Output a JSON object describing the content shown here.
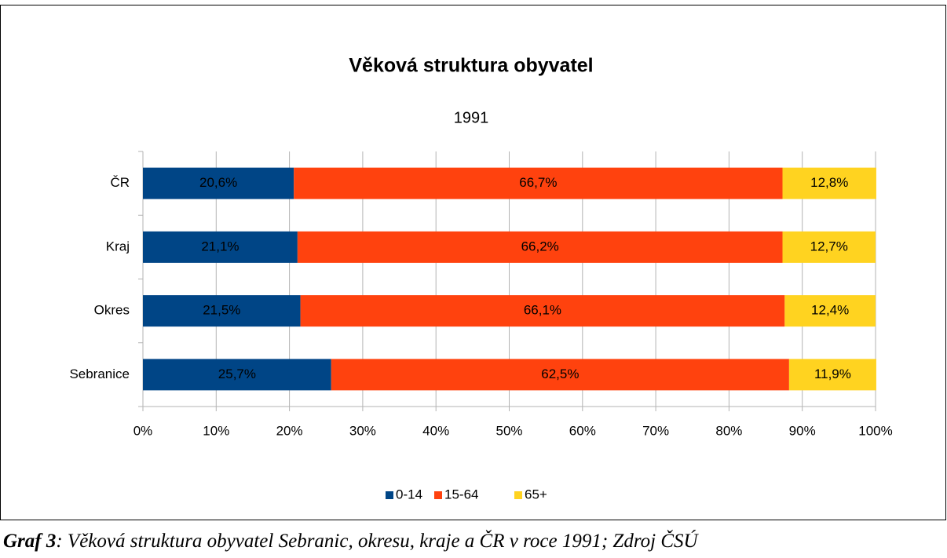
{
  "chart_data": {
    "type": "stacked_barh",
    "title": "Věková struktura obyvatel",
    "subtitle": "1991",
    "categories": [
      "ČR",
      "Kraj",
      "Okres",
      "Sebranice"
    ],
    "series": [
      {
        "name": "0-14",
        "color": "#004586",
        "values": [
          20.6,
          21.1,
          21.5,
          25.7
        ],
        "value_labels": [
          "20,6%",
          "21,1%",
          "21,5%",
          "25,7%"
        ]
      },
      {
        "name": "15-64",
        "color": "#ff420e",
        "values": [
          66.7,
          66.2,
          66.1,
          62.5
        ],
        "value_labels": [
          "66,7%",
          "66,2%",
          "66,1%",
          "62,5%"
        ]
      },
      {
        "name": "65+",
        "color": "#ffd320",
        "values": [
          12.8,
          12.7,
          12.4,
          11.9
        ],
        "value_labels": [
          "12,8%",
          "12,7%",
          "12,4%",
          "11,9%"
        ]
      }
    ],
    "xlim": [
      0,
      100
    ],
    "xticks": [
      {
        "value": 0,
        "label": "0%"
      },
      {
        "value": 10,
        "label": "10%"
      },
      {
        "value": 20,
        "label": "20%"
      },
      {
        "value": 30,
        "label": "30%"
      },
      {
        "value": 40,
        "label": "40%"
      },
      {
        "value": 50,
        "label": "50%"
      },
      {
        "value": 60,
        "label": "60%"
      },
      {
        "value": 70,
        "label": "70%"
      },
      {
        "value": 80,
        "label": "80%"
      },
      {
        "value": 90,
        "label": "90%"
      },
      {
        "value": 100,
        "label": "100%"
      }
    ],
    "grid": true,
    "legend": "bottom"
  },
  "caption": {
    "label": "Graf 3",
    "text": ": Věková struktura obyvatel Sebranic, okresu, kraje a ČR v roce 1991; Zdroj ČSÚ"
  }
}
